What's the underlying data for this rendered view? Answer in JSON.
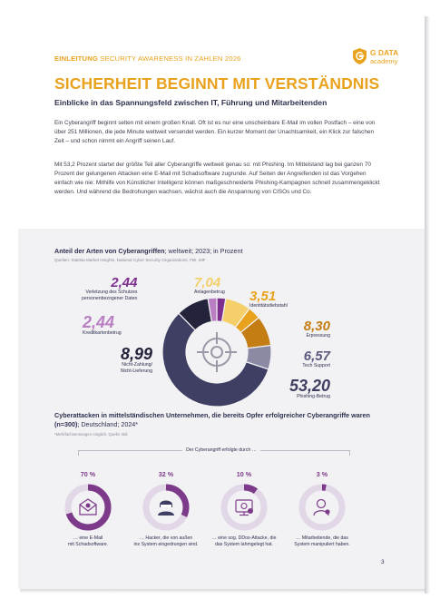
{
  "header": {
    "section": "EINLEITUNG",
    "section_rest": " SECURITY AWARENESS IN ZAHLEN 2026",
    "logo_brand": "G DATA",
    "logo_sub": "academy"
  },
  "title": "SICHERHEIT BEGINNT MIT VERSTÄNDNIS",
  "subtitle": "Einblicke in das Spannungsfeld zwischen IT, Führung und Mitarbeitenden",
  "paragraphs": [
    "Ein Cyberangriff beginnt selten mit einem großen Knall. Oft ist es nur eine unscheinbare E-Mail im vollen Postfach – eine von über 251 Millionen, die jede Minute weltweit versendet werden. Ein kurzer Moment der Unachtsamkeit, ein Klick zur falschen Zeit – und schon nimmt ein Angriff seinen Lauf.",
    "Mit 53,2 Prozent startet der größte Teil aller Cyberangriffe weltweit genau so: mit Phishing. Im Mittelstand lag bei ganzen 70 Prozent der gelungenen Attacken eine E-Mail mit Schadsoftware zugrunde. Auf Seiten der Angreifenden ist das Vorgehen einfach wie nie: Mithilfe von Künstlicher Intelligenz können maßgeschneiderte Phishing-Kampagnen schnell zusammengeklickt werden. Und während die Bedrohungen wachsen, wächst auch die Anspannung von CISOs und Co."
  ],
  "chart": {
    "title_bold": "Anteil der Arten von Cyberangriffen",
    "title_rest": "; weltweit; 2023; in Prozent",
    "source": "Quellen: Statista Market Insights, National Cyber Security Organizations, FBI, IMF"
  },
  "chart_data": {
    "type": "pie",
    "title": "Anteil der Arten von Cyberangriffen; weltweit; 2023; in Prozent",
    "slices": [
      {
        "label": "Verletzung des Schutzes personenbezogener Daten",
        "value": 2.44,
        "display": "2,44",
        "color": "#7e2f8e"
      },
      {
        "label": "Anlagenbetrug",
        "value": 7.04,
        "display": "7,04",
        "color": "#f4cf6a"
      },
      {
        "label": "Identitätsdiebstahl",
        "value": 3.51,
        "display": "3,51",
        "color": "#e9a21d"
      },
      {
        "label": "Erpressung",
        "value": 8.3,
        "display": "8,30",
        "color": "#c47d12"
      },
      {
        "label": "Tech Support",
        "value": 6.57,
        "display": "6,57",
        "color": "#8a8aa5"
      },
      {
        "label": "Phishing-Betrug",
        "value": 53.2,
        "display": "53,20",
        "color": "#3f3e63"
      },
      {
        "label": "Nicht-Zahlung/ Nicht-Lieferung",
        "value": 8.99,
        "display": "8,99",
        "color": "#23233b"
      },
      {
        "label": "Kreditkartenbetrug",
        "value": 2.44,
        "display": "2,44",
        "color": "#b97fc2"
      }
    ]
  },
  "section2": {
    "title_bold": "Cyberattacken in mittelständischen Unternehmen, die bereits Opfer erfolgreicher Cyberangriffe waren (n=300)",
    "title_rest": "; Deutschland; 2024*",
    "note": "*Mehrfachnennungen möglich. Quelle: Bdi",
    "bracket_label": "Der Cyberangriff erfolgte durch …",
    "stats": [
      {
        "pct_label": "70 %",
        "value": 70,
        "desc1": "… eine E-Mail",
        "desc2": "mit Schadsoftware.",
        "icon": "email-icon"
      },
      {
        "pct_label": "32 %",
        "value": 32,
        "desc1": "… Hacker, die von außen",
        "desc2": "ins System eingedrungen sind.",
        "icon": "hacker-icon"
      },
      {
        "pct_label": "10 %",
        "value": 10,
        "desc1": "… eine sog. DDos-Attacke, die",
        "desc2": "das System lahmgelegt hat.",
        "icon": "ddos-icon"
      },
      {
        "pct_label": "3 %",
        "value": 3,
        "desc1": "… Mitarbeitende, die das",
        "desc2": "System manipuliert haben.",
        "icon": "employee-icon"
      }
    ]
  },
  "page_number": "3",
  "colors": {
    "accent": "#e9a21d",
    "purple": "#7d3a8a",
    "navy": "#2d2f4e"
  }
}
